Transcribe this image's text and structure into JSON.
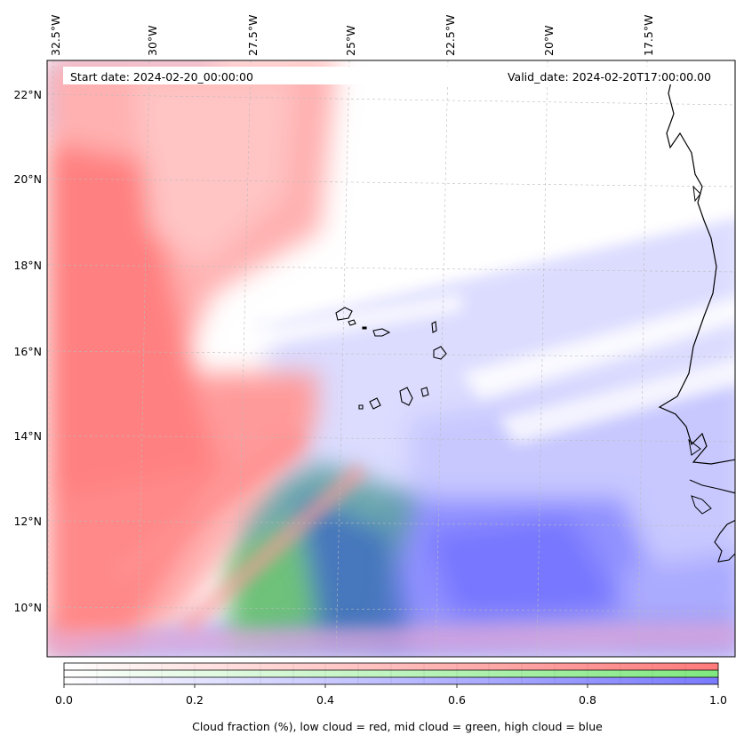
{
  "map": {
    "start_date": "Start date: 2024-02-20_00:00:00",
    "valid_date": "Valid_date: 2024-02-20T17:00:00.00",
    "lon_ticks": [
      "32.5°W",
      "30°W",
      "27.5°W",
      "25°W",
      "22.5°W",
      "20°W",
      "17.5°W"
    ],
    "lat_ticks": [
      "22°N",
      "20°N",
      "18°N",
      "16°N",
      "14°N",
      "12°N",
      "10°N"
    ]
  },
  "colorbar": {
    "ticks": [
      "0.0",
      "0.2",
      "0.4",
      "0.6",
      "0.8",
      "1.0"
    ],
    "label": "Cloud fraction (%), low cloud = red, mid cloud = green, high cloud = blue",
    "low_color": "#ff7a7a",
    "mid_color": "#7fe87f",
    "high_color": "#7a7aff"
  }
}
